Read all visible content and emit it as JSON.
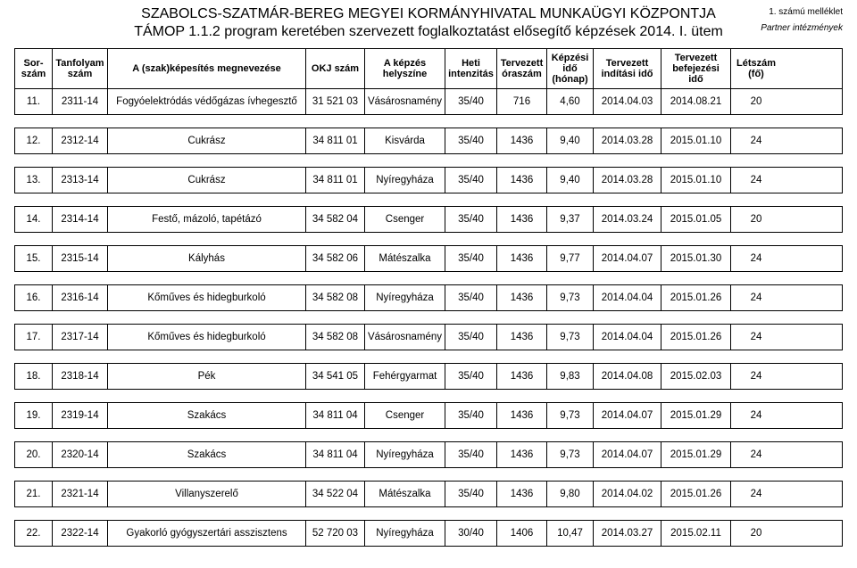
{
  "header": {
    "title_line1": "SZABOLCS-SZATMÁR-BEREG MEGYEI KORMÁNYHIVATAL MUNKAÜGYI KÖZPONTJA",
    "title_line2": "TÁMOP 1.1.2 program keretében szervezett foglalkoztatást elősegítő képzések 2014. I. ütem",
    "annex": "1. számú melléklet",
    "partner": "Partner intézmények"
  },
  "columns": {
    "sor": "Sor-\nszám",
    "tanf": "Tanfolyam\nszám",
    "name": "A (szak)képesítés megnevezése",
    "okj": "OKJ szám",
    "hely": "A képzés\nhelyszíne",
    "heti": "Heti\nintenzitás",
    "ora": "Tervezett\nóraszám",
    "kepz": "Képzési\nidő\n(hónap)",
    "ind": "Tervezett\nindítási idő",
    "bef": "Tervezett\nbefejezési\nidő",
    "let": "Létszám\n(fő)"
  },
  "rows": [
    {
      "sor": "11.",
      "tanf": "2311-14",
      "name": "Fogyóelektródás védőgázas ívhegesztő",
      "okj": "31 521 03",
      "hely": "Vásárosnamény",
      "heti": "35/40",
      "ora": "716",
      "kepz": "4,60",
      "ind": "2014.04.03",
      "bef": "2014.08.21",
      "let": "20"
    },
    {
      "sor": "12.",
      "tanf": "2312-14",
      "name": "Cukrász",
      "okj": "34 811 01",
      "hely": "Kisvárda",
      "heti": "35/40",
      "ora": "1436",
      "kepz": "9,40",
      "ind": "2014.03.28",
      "bef": "2015.01.10",
      "let": "24"
    },
    {
      "sor": "13.",
      "tanf": "2313-14",
      "name": "Cukrász",
      "okj": "34 811 01",
      "hely": "Nyíregyháza",
      "heti": "35/40",
      "ora": "1436",
      "kepz": "9,40",
      "ind": "2014.03.28",
      "bef": "2015.01.10",
      "let": "24"
    },
    {
      "sor": "14.",
      "tanf": "2314-14",
      "name": "Festő, mázoló, tapétázó",
      "okj": "34 582 04",
      "hely": "Csenger",
      "heti": "35/40",
      "ora": "1436",
      "kepz": "9,37",
      "ind": "2014.03.24",
      "bef": "2015.01.05",
      "let": "20"
    },
    {
      "sor": "15.",
      "tanf": "2315-14",
      "name": "Kályhás",
      "okj": "34 582 06",
      "hely": "Mátészalka",
      "heti": "35/40",
      "ora": "1436",
      "kepz": "9,77",
      "ind": "2014.04.07",
      "bef": "2015.01.30",
      "let": "24"
    },
    {
      "sor": "16.",
      "tanf": "2316-14",
      "name": "Kőműves és hidegburkoló",
      "okj": "34 582 08",
      "hely": "Nyíregyháza",
      "heti": "35/40",
      "ora": "1436",
      "kepz": "9,73",
      "ind": "2014.04.04",
      "bef": "2015.01.26",
      "let": "24"
    },
    {
      "sor": "17.",
      "tanf": "2317-14",
      "name": "Kőműves és hidegburkoló",
      "okj": "34 582 08",
      "hely": "Vásárosnamény",
      "heti": "35/40",
      "ora": "1436",
      "kepz": "9,73",
      "ind": "2014.04.04",
      "bef": "2015.01.26",
      "let": "24"
    },
    {
      "sor": "18.",
      "tanf": "2318-14",
      "name": "Pék",
      "okj": "34 541 05",
      "hely": "Fehérgyarmat",
      "heti": "35/40",
      "ora": "1436",
      "kepz": "9,83",
      "ind": "2014.04.08",
      "bef": "2015.02.03",
      "let": "24"
    },
    {
      "sor": "19.",
      "tanf": "2319-14",
      "name": "Szakács",
      "okj": "34 811 04",
      "hely": "Csenger",
      "heti": "35/40",
      "ora": "1436",
      "kepz": "9,73",
      "ind": "2014.04.07",
      "bef": "2015.01.29",
      "let": "24"
    },
    {
      "sor": "20.",
      "tanf": "2320-14",
      "name": "Szakács",
      "okj": "34 811 04",
      "hely": "Nyíregyháza",
      "heti": "35/40",
      "ora": "1436",
      "kepz": "9,73",
      "ind": "2014.04.07",
      "bef": "2015.01.29",
      "let": "24"
    },
    {
      "sor": "21.",
      "tanf": "2321-14",
      "name": "Villanyszerelő",
      "okj": "34 522 04",
      "hely": "Mátészalka",
      "heti": "35/40",
      "ora": "1436",
      "kepz": "9,80",
      "ind": "2014.04.02",
      "bef": "2015.01.26",
      "let": "24"
    },
    {
      "sor": "22.",
      "tanf": "2322-14",
      "name": "Gyakorló gyógyszertári asszisztens",
      "okj": "52 720 03",
      "hely": "Nyíregyháza",
      "heti": "30/40",
      "ora": "1406",
      "kepz": "10,47",
      "ind": "2014.03.27",
      "bef": "2015.02.11",
      "let": "20"
    }
  ]
}
